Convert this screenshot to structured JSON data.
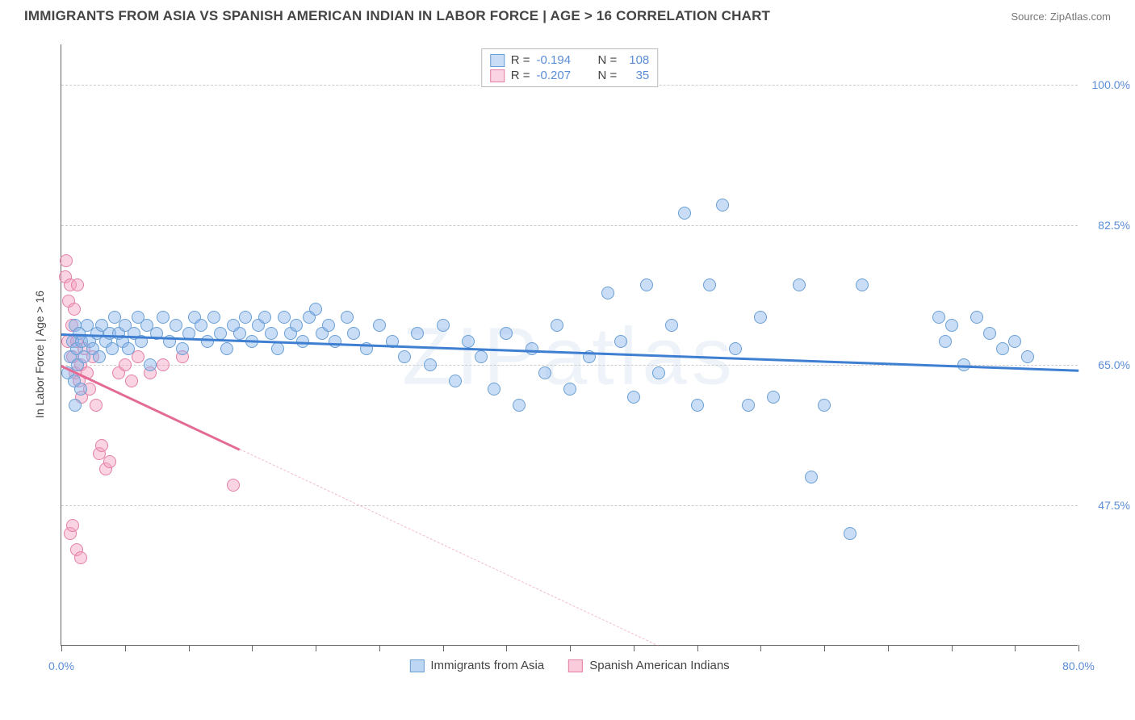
{
  "title": "IMMIGRANTS FROM ASIA VS SPANISH AMERICAN INDIAN IN LABOR FORCE | AGE > 16 CORRELATION CHART",
  "source": "Source: ZipAtlas.com",
  "watermark": "ZIPatlas",
  "ylabel": "In Labor Force | Age > 16",
  "chart": {
    "type": "scatter",
    "background_color": "#ffffff",
    "grid_color": "#cccccc",
    "axis_color": "#666666",
    "label_color": "#5b8dd6",
    "text_color": "#444444",
    "xlim": [
      0,
      80
    ],
    "ylim": [
      30,
      105
    ],
    "yticks": [
      {
        "v": 47.5,
        "label": "47.5%"
      },
      {
        "v": 65.0,
        "label": "65.0%"
      },
      {
        "v": 82.5,
        "label": "82.5%"
      },
      {
        "v": 100.0,
        "label": "100.0%"
      }
    ],
    "xtick_values": [
      0,
      5,
      10,
      15,
      20,
      25,
      30,
      35,
      40,
      45,
      50,
      55,
      60,
      65,
      70,
      75,
      80
    ],
    "xtick_labels": [
      {
        "v": 0,
        "label": "0.0%"
      },
      {
        "v": 80,
        "label": "80.0%"
      }
    ],
    "point_radius": 8,
    "point_stroke_width": 1.5,
    "series": [
      {
        "name": "Immigrants from Asia",
        "fill": "rgba(135,180,235,0.45)",
        "stroke": "#6a9fd4",
        "r": -0.194,
        "n": 108,
        "trend": {
          "x1": 0,
          "y1": 69.0,
          "x2": 80,
          "y2": 64.5,
          "solid_until_x": 80,
          "color": "#3f7fd1"
        },
        "points": [
          [
            0.5,
            64
          ],
          [
            0.7,
            66
          ],
          [
            0.9,
            68
          ],
          [
            1.0,
            63
          ],
          [
            1.1,
            70
          ],
          [
            1.1,
            60
          ],
          [
            1.2,
            67
          ],
          [
            1.3,
            65
          ],
          [
            1.4,
            69
          ],
          [
            1.5,
            62
          ],
          [
            1.6,
            68
          ],
          [
            1.8,
            66
          ],
          [
            2.0,
            70
          ],
          [
            2.2,
            68
          ],
          [
            2.5,
            67
          ],
          [
            2.8,
            69
          ],
          [
            3.0,
            66
          ],
          [
            3.2,
            70
          ],
          [
            3.5,
            68
          ],
          [
            3.8,
            69
          ],
          [
            4.0,
            67
          ],
          [
            4.2,
            71
          ],
          [
            4.5,
            69
          ],
          [
            4.8,
            68
          ],
          [
            5.0,
            70
          ],
          [
            5.3,
            67
          ],
          [
            5.7,
            69
          ],
          [
            6.0,
            71
          ],
          [
            6.3,
            68
          ],
          [
            6.7,
            70
          ],
          [
            7.0,
            65
          ],
          [
            7.5,
            69
          ],
          [
            8.0,
            71
          ],
          [
            8.5,
            68
          ],
          [
            9.0,
            70
          ],
          [
            9.5,
            67
          ],
          [
            10.0,
            69
          ],
          [
            10.5,
            71
          ],
          [
            11.0,
            70
          ],
          [
            11.5,
            68
          ],
          [
            12.0,
            71
          ],
          [
            12.5,
            69
          ],
          [
            13.0,
            67
          ],
          [
            13.5,
            70
          ],
          [
            14.0,
            69
          ],
          [
            14.5,
            71
          ],
          [
            15.0,
            68
          ],
          [
            15.5,
            70
          ],
          [
            16.0,
            71
          ],
          [
            16.5,
            69
          ],
          [
            17.0,
            67
          ],
          [
            17.5,
            71
          ],
          [
            18.0,
            69
          ],
          [
            18.5,
            70
          ],
          [
            19.0,
            68
          ],
          [
            19.5,
            71
          ],
          [
            20.0,
            72
          ],
          [
            20.5,
            69
          ],
          [
            21.0,
            70
          ],
          [
            21.5,
            68
          ],
          [
            22.5,
            71
          ],
          [
            23.0,
            69
          ],
          [
            24.0,
            67
          ],
          [
            25.0,
            70
          ],
          [
            26.0,
            68
          ],
          [
            27.0,
            66
          ],
          [
            28.0,
            69
          ],
          [
            29.0,
            65
          ],
          [
            30.0,
            70
          ],
          [
            31.0,
            63
          ],
          [
            32.0,
            68
          ],
          [
            33.0,
            66
          ],
          [
            34.0,
            62
          ],
          [
            35.0,
            69
          ],
          [
            36.0,
            60
          ],
          [
            37.0,
            67
          ],
          [
            38.0,
            64
          ],
          [
            39.0,
            70
          ],
          [
            40.0,
            62
          ],
          [
            41.5,
            66
          ],
          [
            43.0,
            74
          ],
          [
            44.0,
            68
          ],
          [
            45.0,
            61
          ],
          [
            46.0,
            75
          ],
          [
            47.0,
            64
          ],
          [
            48.0,
            70
          ],
          [
            49.0,
            84
          ],
          [
            50.0,
            60
          ],
          [
            51.0,
            75
          ],
          [
            52.0,
            85
          ],
          [
            53.0,
            67
          ],
          [
            54.0,
            60
          ],
          [
            55.0,
            71
          ],
          [
            56.0,
            61
          ],
          [
            58.0,
            75
          ],
          [
            59.0,
            51
          ],
          [
            60.0,
            60
          ],
          [
            62.0,
            44
          ],
          [
            63.0,
            75
          ],
          [
            69.0,
            71
          ],
          [
            69.5,
            68
          ],
          [
            70.0,
            70
          ],
          [
            71.0,
            65
          ],
          [
            72.0,
            71
          ],
          [
            73.0,
            69
          ],
          [
            74.0,
            67
          ],
          [
            75.0,
            68
          ],
          [
            76.0,
            66
          ]
        ]
      },
      {
        "name": "Spanish American Indians",
        "fill": "rgba(245,160,190,0.45)",
        "stroke": "#e37fa6",
        "r": -0.207,
        "n": 35,
        "trend": {
          "x1": 0,
          "y1": 65.0,
          "x2": 47,
          "y2": 30.0,
          "solid_until_x": 14,
          "color": "#e36b95"
        },
        "points": [
          [
            0.3,
            76
          ],
          [
            0.4,
            78
          ],
          [
            0.5,
            68
          ],
          [
            0.6,
            73
          ],
          [
            0.7,
            75
          ],
          [
            0.8,
            70
          ],
          [
            0.9,
            66
          ],
          [
            1.0,
            72
          ],
          [
            1.1,
            64
          ],
          [
            1.2,
            68
          ],
          [
            1.3,
            75
          ],
          [
            1.4,
            63
          ],
          [
            1.5,
            65
          ],
          [
            1.6,
            61
          ],
          [
            1.8,
            67
          ],
          [
            2.0,
            64
          ],
          [
            2.2,
            62
          ],
          [
            2.5,
            66
          ],
          [
            2.7,
            60
          ],
          [
            3.0,
            54
          ],
          [
            3.2,
            55
          ],
          [
            3.5,
            52
          ],
          [
            3.8,
            53
          ],
          [
            0.7,
            44
          ],
          [
            0.9,
            45
          ],
          [
            1.2,
            42
          ],
          [
            1.5,
            41
          ],
          [
            4.5,
            64
          ],
          [
            5.0,
            65
          ],
          [
            5.5,
            63
          ],
          [
            6.0,
            66
          ],
          [
            7.0,
            64
          ],
          [
            8.0,
            65
          ],
          [
            9.5,
            66
          ],
          [
            13.5,
            50
          ]
        ]
      }
    ],
    "bottom_legend": [
      {
        "label": "Immigrants from Asia",
        "fill": "rgba(135,180,235,0.55)",
        "stroke": "#6a9fd4"
      },
      {
        "label": "Spanish American Indians",
        "fill": "rgba(245,160,190,0.55)",
        "stroke": "#e37fa6"
      }
    ]
  }
}
